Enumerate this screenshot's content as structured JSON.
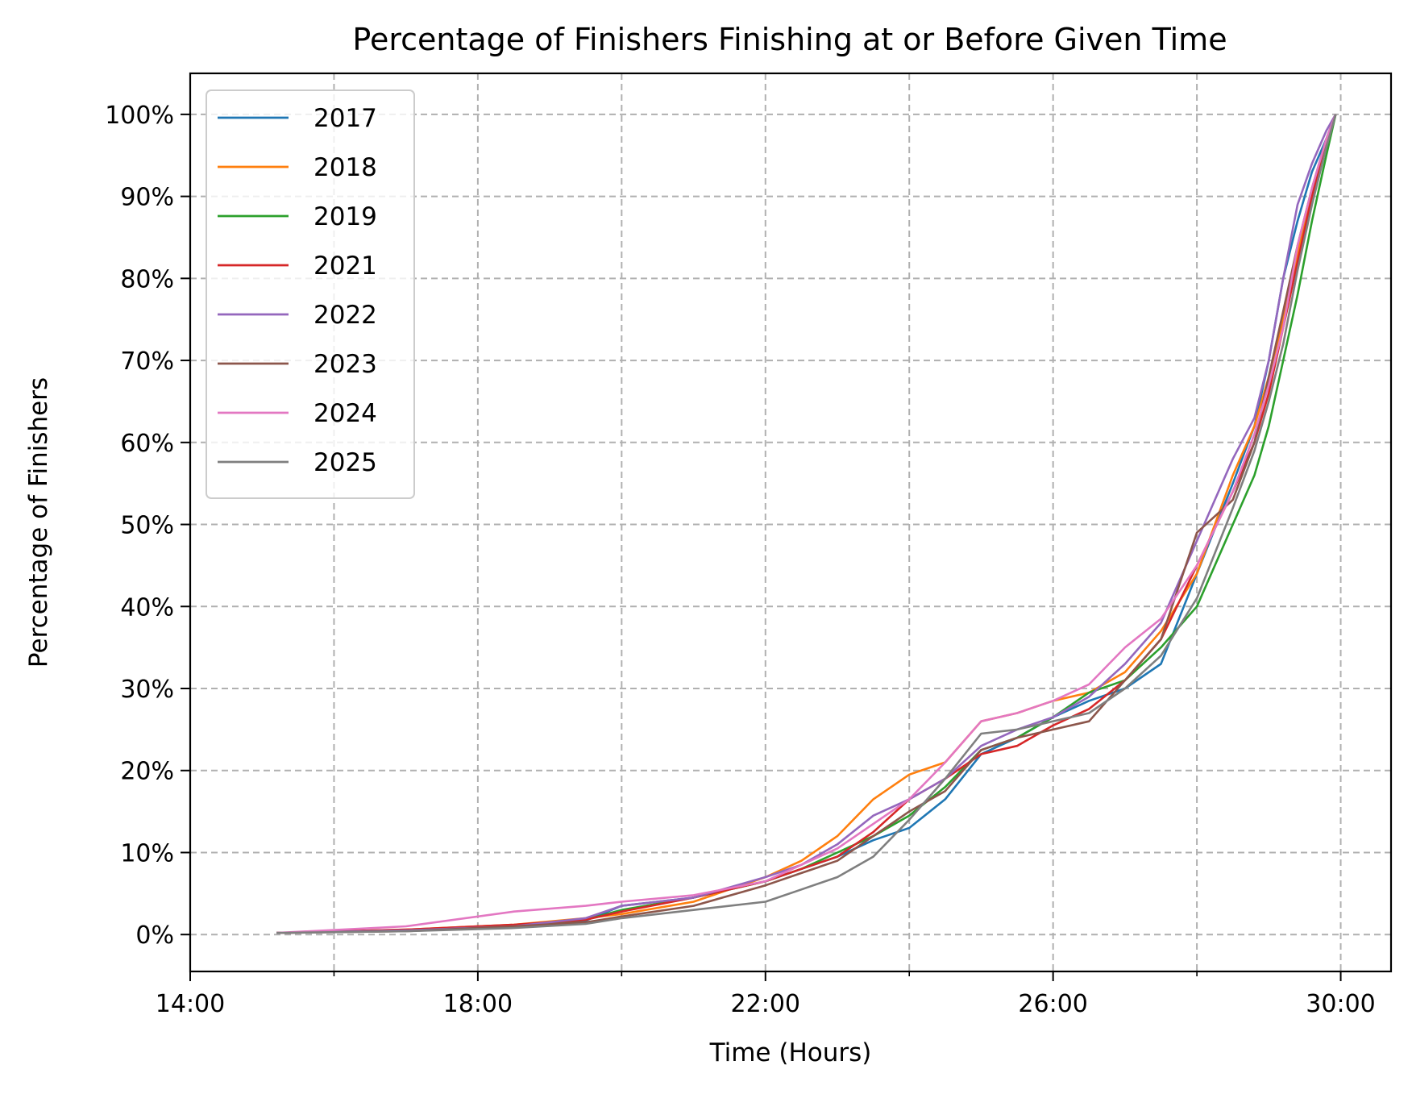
{
  "chart_data": {
    "type": "line",
    "title": "Percentage of Finishers Finishing at or Before Given Time",
    "xlabel": "Time (Hours)",
    "ylabel": "Percentage of Finishers",
    "xlim": [
      14.0,
      30.7
    ],
    "ylim": [
      -4.5,
      105
    ],
    "xticks": [
      14,
      18,
      22,
      26,
      30
    ],
    "xtick_labels": [
      "14:00",
      "18:00",
      "22:00",
      "26:00",
      "30:00"
    ],
    "xminor": [
      16,
      20,
      24,
      28
    ],
    "yticks": [
      0,
      10,
      20,
      30,
      40,
      50,
      60,
      70,
      80,
      90,
      100
    ],
    "ytick_labels": [
      "0%",
      "10%",
      "20%",
      "30%",
      "40%",
      "50%",
      "60%",
      "70%",
      "80%",
      "90%",
      "100%"
    ],
    "grid": true,
    "legend_position": "top-left",
    "series": [
      {
        "name": "2017",
        "color": "#1f77b4",
        "x": [
          15.2,
          17.0,
          18.5,
          19.5,
          20.0,
          21.0,
          22.0,
          22.5,
          23.0,
          23.5,
          24.0,
          24.5,
          25.0,
          25.5,
          26.0,
          26.5,
          27.0,
          27.5,
          28.0,
          28.5,
          28.8,
          29.0,
          29.2,
          29.4,
          29.6,
          29.8,
          29.93
        ],
        "y": [
          0.2,
          0.5,
          1.0,
          1.7,
          3.5,
          4.5,
          6.5,
          8.0,
          9.5,
          11.5,
          13.0,
          16.5,
          22.0,
          24.0,
          26.5,
          28.5,
          30.0,
          33.0,
          44.0,
          55.0,
          62.0,
          70.0,
          80.0,
          87.0,
          93.0,
          97.0,
          100.0
        ]
      },
      {
        "name": "2018",
        "color": "#ff7f0e",
        "x": [
          15.2,
          17.0,
          18.5,
          19.5,
          20.0,
          21.0,
          22.0,
          22.5,
          23.0,
          23.5,
          24.0,
          24.5,
          25.0,
          25.5,
          26.0,
          26.5,
          27.0,
          27.5,
          28.0,
          28.5,
          28.8,
          29.0,
          29.2,
          29.4,
          29.6,
          29.8,
          29.93
        ],
        "y": [
          0.2,
          0.6,
          1.2,
          2.0,
          2.5,
          4.0,
          7.0,
          9.0,
          12.0,
          16.5,
          19.5,
          21.0,
          26.0,
          27.0,
          28.5,
          29.5,
          32.0,
          37.0,
          44.0,
          56.0,
          62.0,
          68.0,
          75.0,
          83.0,
          90.0,
          96.0,
          100.0
        ]
      },
      {
        "name": "2019",
        "color": "#2ca02c",
        "x": [
          15.2,
          17.0,
          18.5,
          19.5,
          20.0,
          21.0,
          22.0,
          22.5,
          23.0,
          23.5,
          24.0,
          24.5,
          25.0,
          25.5,
          26.0,
          26.5,
          27.0,
          27.5,
          28.0,
          28.5,
          28.8,
          29.0,
          29.2,
          29.4,
          29.6,
          29.8,
          29.93
        ],
        "y": [
          0.2,
          0.5,
          1.1,
          1.8,
          3.0,
          4.5,
          6.5,
          8.0,
          10.0,
          12.0,
          14.5,
          18.0,
          22.5,
          24.0,
          26.5,
          29.5,
          31.0,
          35.0,
          40.0,
          50.0,
          56.0,
          62.0,
          70.0,
          78.0,
          87.0,
          95.0,
          100.0
        ]
      },
      {
        "name": "2021",
        "color": "#d62728",
        "x": [
          15.2,
          17.0,
          18.5,
          19.5,
          20.0,
          21.0,
          22.0,
          22.5,
          23.0,
          23.5,
          24.0,
          24.5,
          25.0,
          25.5,
          26.0,
          26.5,
          27.0,
          27.5,
          28.0,
          28.5,
          28.8,
          29.0,
          29.2,
          29.4,
          29.6,
          29.8,
          29.93
        ],
        "y": [
          0.2,
          0.6,
          1.2,
          1.8,
          2.8,
          4.5,
          6.5,
          8.0,
          9.5,
          12.5,
          16.5,
          19.0,
          22.0,
          23.0,
          25.5,
          27.5,
          31.0,
          36.0,
          45.0,
          54.0,
          60.0,
          66.0,
          74.0,
          82.0,
          90.0,
          97.0,
          100.0
        ]
      },
      {
        "name": "2022",
        "color": "#9467bd",
        "x": [
          15.2,
          17.0,
          18.5,
          19.5,
          20.0,
          21.0,
          22.0,
          22.5,
          23.0,
          23.5,
          24.0,
          24.5,
          25.0,
          25.5,
          26.0,
          26.5,
          27.0,
          27.5,
          28.0,
          28.5,
          28.8,
          29.0,
          29.2,
          29.4,
          29.6,
          29.8,
          29.93
        ],
        "y": [
          0.2,
          0.5,
          1.0,
          2.0,
          3.5,
          4.5,
          7.0,
          8.5,
          11.0,
          14.5,
          16.5,
          19.0,
          23.0,
          25.0,
          26.5,
          29.0,
          33.0,
          38.0,
          48.0,
          58.0,
          63.0,
          70.0,
          80.0,
          89.0,
          94.0,
          98.0,
          100.0
        ]
      },
      {
        "name": "2023",
        "color": "#8c564b",
        "x": [
          15.2,
          17.0,
          18.5,
          19.5,
          20.0,
          21.0,
          22.0,
          22.5,
          23.0,
          23.5,
          24.0,
          24.5,
          25.0,
          25.5,
          26.0,
          26.5,
          27.0,
          27.5,
          28.0,
          28.5,
          28.8,
          29.0,
          29.2,
          29.4,
          29.6,
          29.8,
          29.93
        ],
        "y": [
          0.2,
          0.4,
          1.0,
          1.5,
          2.2,
          3.5,
          6.0,
          7.5,
          9.0,
          12.0,
          15.0,
          17.5,
          22.5,
          24.0,
          25.0,
          26.0,
          31.0,
          36.0,
          49.0,
          53.0,
          60.0,
          68.0,
          76.0,
          84.0,
          91.0,
          97.0,
          100.0
        ]
      },
      {
        "name": "2024",
        "color": "#e377c2",
        "x": [
          15.2,
          17.0,
          18.5,
          19.5,
          20.0,
          21.0,
          22.0,
          22.5,
          23.0,
          23.5,
          24.0,
          24.5,
          25.0,
          25.5,
          26.0,
          26.5,
          27.0,
          27.5,
          28.0,
          28.5,
          28.8,
          29.0,
          29.2,
          29.4,
          29.6,
          29.8,
          29.93
        ],
        "y": [
          0.2,
          1.0,
          2.8,
          3.5,
          4.0,
          4.8,
          6.5,
          8.5,
          10.5,
          13.5,
          16.5,
          21.0,
          26.0,
          27.0,
          28.5,
          30.5,
          35.0,
          38.5,
          45.0,
          54.0,
          61.0,
          67.0,
          74.0,
          84.0,
          91.0,
          97.0,
          100.0
        ]
      },
      {
        "name": "2025",
        "color": "#7f7f7f",
        "x": [
          15.2,
          17.0,
          18.5,
          19.5,
          20.0,
          21.0,
          22.0,
          22.5,
          23.0,
          23.5,
          24.0,
          24.5,
          25.0,
          25.5,
          26.0,
          26.5,
          27.0,
          27.5,
          28.0,
          28.5,
          28.8,
          29.0,
          29.2,
          29.4,
          29.6,
          29.8,
          29.93
        ],
        "y": [
          0.2,
          0.4,
          0.8,
          1.3,
          2.0,
          3.0,
          4.0,
          5.5,
          7.0,
          9.5,
          14.0,
          19.0,
          24.5,
          25.0,
          26.0,
          27.0,
          30.0,
          34.0,
          41.0,
          52.0,
          59.0,
          65.0,
          72.0,
          81.0,
          89.0,
          96.0,
          100.0
        ]
      }
    ]
  }
}
